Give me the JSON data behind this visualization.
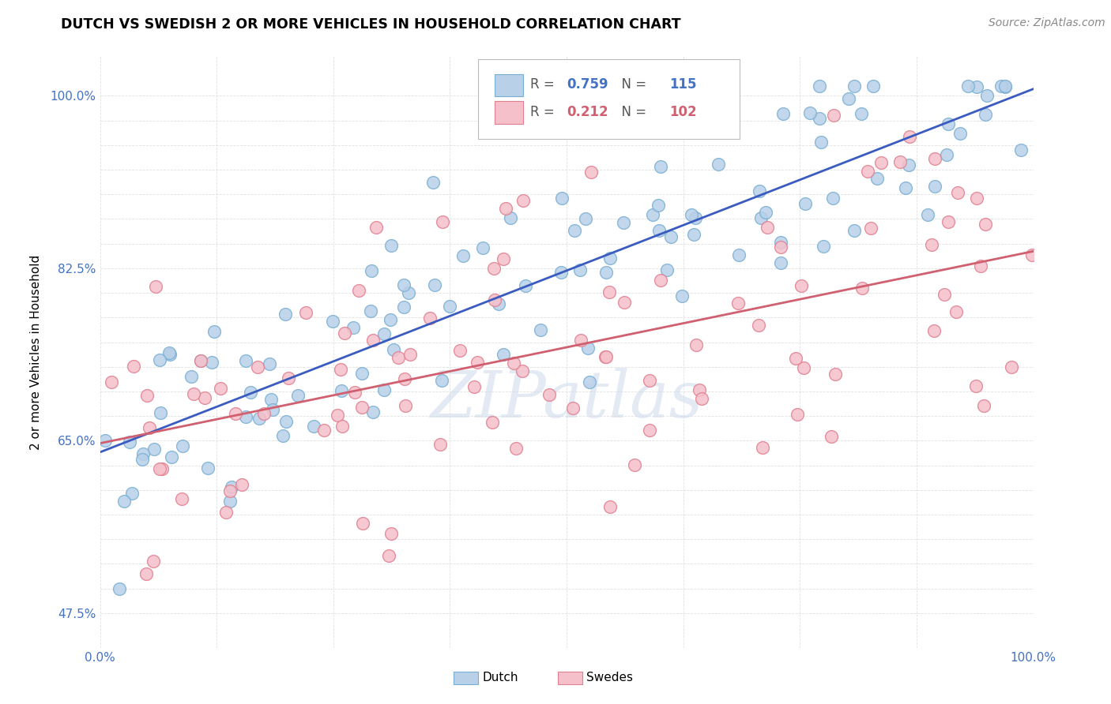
{
  "title": "DUTCH VS SWEDISH 2 OR MORE VEHICLES IN HOUSEHOLD CORRELATION CHART",
  "source": "Source: ZipAtlas.com",
  "ylabel": "2 or more Vehicles in Household",
  "xlim": [
    0.0,
    1.0
  ],
  "ylim": [
    0.44,
    1.04
  ],
  "dutch_R": 0.759,
  "dutch_N": 115,
  "swedes_R": 0.212,
  "swedes_N": 102,
  "dutch_color": "#b8d0e8",
  "dutch_edge_color": "#7aafd4",
  "swedes_color": "#f5c0ca",
  "swedes_edge_color": "#e08090",
  "trend_dutch_color": "#3a5bbf",
  "trend_swedes_color": "#d06070",
  "watermark_text": "ZIPatlas",
  "ytick_labeled": {
    "0.475": "47.5%",
    "0.65": "65.0%",
    "0.825": "82.5%",
    "1.0": "100.0%"
  },
  "ytick_all": [
    0.475,
    0.5,
    0.525,
    0.55,
    0.575,
    0.6,
    0.625,
    0.65,
    0.675,
    0.7,
    0.725,
    0.75,
    0.775,
    0.8,
    0.825,
    0.85,
    0.875,
    0.9,
    0.925,
    0.95,
    0.975,
    1.0
  ],
  "xtick_vals": [
    0.0,
    0.125,
    0.25,
    0.375,
    0.5,
    0.625,
    0.75,
    0.875,
    1.0
  ],
  "grid_color": "#dddddd",
  "tick_color": "#4472c4",
  "legend_R_dutch": "0.759",
  "legend_N_dutch": "115",
  "legend_R_swedes": "0.212",
  "legend_N_swedes": "102",
  "legend_color_dutch": "#4472c4",
  "legend_color_swedes": "#d06070"
}
